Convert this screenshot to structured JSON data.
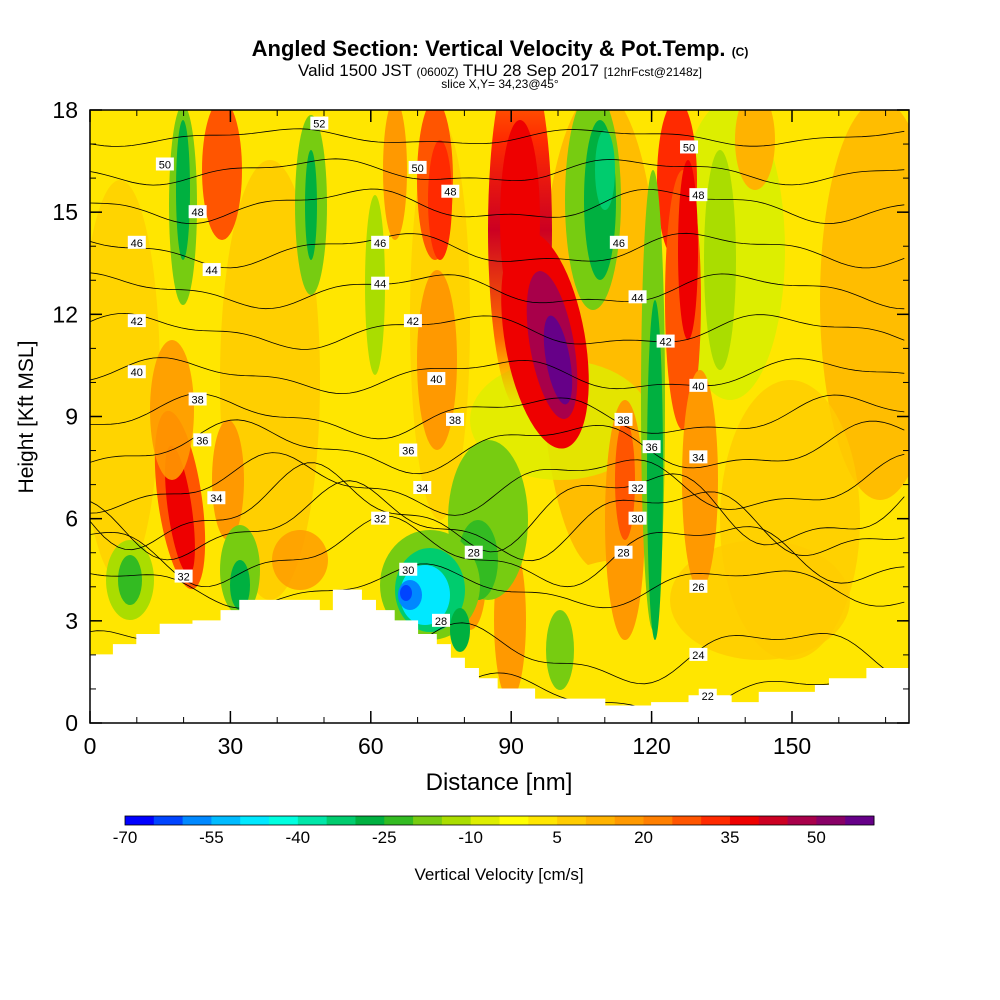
{
  "header": {
    "title": "Angled Section: Vertical Velocity & Pot.Temp.",
    "title_unit": "(C)",
    "valid_prefix": "Valid 1500 JST",
    "valid_zulu": "(0600Z)",
    "valid_date": "THU 28 Sep 2017",
    "forecast_tag": "[12hrFcst@2148z]",
    "slice": "slice X,Y= 34,23@45°"
  },
  "chart_data": {
    "type": "heatmap",
    "title": "Angled Section: Vertical Velocity & Pot.Temp. (C)",
    "xlabel": "Distance [nm]",
    "ylabel": "Height [Kft MSL]",
    "xlim": [
      0,
      175
    ],
    "ylim": [
      0,
      18
    ],
    "x_ticks": [
      0,
      30,
      60,
      90,
      120,
      150
    ],
    "y_ticks": [
      0,
      3,
      6,
      9,
      12,
      15,
      18
    ],
    "colorbar": {
      "label": "Vertical Velocity [cm/s]",
      "tick_labels": [
        -70,
        -55,
        -40,
        -25,
        -10,
        5,
        20,
        35,
        50
      ],
      "colors": [
        "#0000ff",
        "#0044ff",
        "#0088ff",
        "#00bbff",
        "#00e8ff",
        "#00ffe0",
        "#00e6a8",
        "#00cc6e",
        "#00b040",
        "#33bb22",
        "#77cc11",
        "#aadd00",
        "#ddee00",
        "#ffff00",
        "#ffe600",
        "#ffcc00",
        "#ffb300",
        "#ff9900",
        "#ff7f00",
        "#ff5500",
        "#ff2a00",
        "#ee0000",
        "#cc0022",
        "#a8004a",
        "#880066",
        "#660088"
      ]
    },
    "terrain_kft": [
      [
        0,
        2.0
      ],
      [
        5,
        2.0
      ],
      [
        5,
        2.3
      ],
      [
        10,
        2.3
      ],
      [
        10,
        2.6
      ],
      [
        15,
        2.6
      ],
      [
        15,
        2.9
      ],
      [
        22,
        2.9
      ],
      [
        22,
        3.0
      ],
      [
        28,
        3.0
      ],
      [
        28,
        3.3
      ],
      [
        32,
        3.3
      ],
      [
        32,
        3.6
      ],
      [
        49,
        3.6
      ],
      [
        49,
        3.3
      ],
      [
        52,
        3.3
      ],
      [
        52,
        3.9
      ],
      [
        58,
        3.9
      ],
      [
        58,
        3.6
      ],
      [
        61,
        3.6
      ],
      [
        61,
        3.3
      ],
      [
        65,
        3.3
      ],
      [
        65,
        3.0
      ],
      [
        70,
        3.0
      ],
      [
        70,
        2.6
      ],
      [
        74,
        2.6
      ],
      [
        74,
        2.3
      ],
      [
        77,
        2.3
      ],
      [
        77,
        1.9
      ],
      [
        80,
        1.9
      ],
      [
        80,
        1.6
      ],
      [
        83,
        1.6
      ],
      [
        83,
        1.3
      ],
      [
        87,
        1.3
      ],
      [
        87,
        1.0
      ],
      [
        95,
        1.0
      ],
      [
        95,
        0.7
      ],
      [
        110,
        0.7
      ],
      [
        110,
        0.5
      ],
      [
        120,
        0.5
      ],
      [
        120,
        0.6
      ],
      [
        128,
        0.6
      ],
      [
        128,
        0.8
      ],
      [
        137,
        0.8
      ],
      [
        137,
        0.6
      ],
      [
        143,
        0.6
      ],
      [
        143,
        0.9
      ],
      [
        155,
        0.9
      ],
      [
        155,
        1.1
      ],
      [
        158,
        1.1
      ],
      [
        158,
        1.3
      ],
      [
        166,
        1.3
      ],
      [
        166,
        1.6
      ],
      [
        175,
        1.6
      ]
    ],
    "theta_contours": [
      {
        "value": 22,
        "baseline": 0.8,
        "amplitude": 0.5,
        "labels": [
          [
            132,
            0.8
          ]
        ]
      },
      {
        "value": 24,
        "baseline": 2.0,
        "amplitude": 0.7,
        "labels": [
          [
            130,
            2.0
          ]
        ]
      },
      {
        "value": 26,
        "baseline": 4.0,
        "amplitude": 0.5,
        "labels": [
          [
            130,
            4.0
          ]
        ]
      },
      {
        "value": 28,
        "baseline": 5.0,
        "amplitude": 0.8,
        "labels": [
          [
            75,
            3.0
          ],
          [
            82,
            5.0
          ],
          [
            114,
            5.0
          ]
        ]
      },
      {
        "value": 30,
        "baseline": 5.9,
        "amplitude": 0.9,
        "labels": [
          [
            68,
            4.5
          ],
          [
            117,
            6.0
          ]
        ]
      },
      {
        "value": 32,
        "baseline": 6.3,
        "amplitude": 1.0,
        "labels": [
          [
            20,
            4.3
          ],
          [
            62,
            6.0
          ],
          [
            117,
            6.9
          ]
        ]
      },
      {
        "value": 34,
        "baseline": 7.0,
        "amplitude": 0.7,
        "labels": [
          [
            27,
            6.6
          ],
          [
            71,
            6.9
          ],
          [
            130,
            7.8
          ]
        ]
      },
      {
        "value": 36,
        "baseline": 8.1,
        "amplitude": 0.6,
        "labels": [
          [
            24,
            8.3
          ],
          [
            68,
            8.0
          ],
          [
            120,
            8.1
          ]
        ]
      },
      {
        "value": 38,
        "baseline": 9.0,
        "amplitude": 0.5,
        "labels": [
          [
            23,
            9.5
          ],
          [
            78,
            8.9
          ],
          [
            114,
            8.9
          ]
        ]
      },
      {
        "value": 40,
        "baseline": 10.2,
        "amplitude": 0.4,
        "labels": [
          [
            10,
            10.3
          ],
          [
            74,
            10.1
          ],
          [
            130,
            9.9
          ]
        ]
      },
      {
        "value": 42,
        "baseline": 11.5,
        "amplitude": 0.4,
        "labels": [
          [
            10,
            11.8
          ],
          [
            69,
            11.8
          ],
          [
            123,
            11.2
          ]
        ]
      },
      {
        "value": 44,
        "baseline": 12.7,
        "amplitude": 0.4,
        "labels": [
          [
            26,
            13.3
          ],
          [
            62,
            12.9
          ],
          [
            117,
            12.5
          ]
        ]
      },
      {
        "value": 46,
        "baseline": 13.9,
        "amplitude": 0.4,
        "labels": [
          [
            10,
            14.1
          ],
          [
            62,
            14.1
          ],
          [
            113,
            14.1
          ]
        ]
      },
      {
        "value": 48,
        "baseline": 15.2,
        "amplitude": 0.4,
        "labels": [
          [
            23,
            15.0
          ],
          [
            77,
            15.6
          ],
          [
            130,
            15.5
          ]
        ]
      },
      {
        "value": 50,
        "baseline": 16.2,
        "amplitude": 0.3,
        "labels": [
          [
            16,
            16.4
          ],
          [
            70,
            16.3
          ],
          [
            128,
            16.9
          ]
        ]
      },
      {
        "value": 52,
        "baseline": 17.2,
        "amplitude": 0.2,
        "labels": [
          [
            49,
            17.6
          ]
        ]
      }
    ]
  }
}
